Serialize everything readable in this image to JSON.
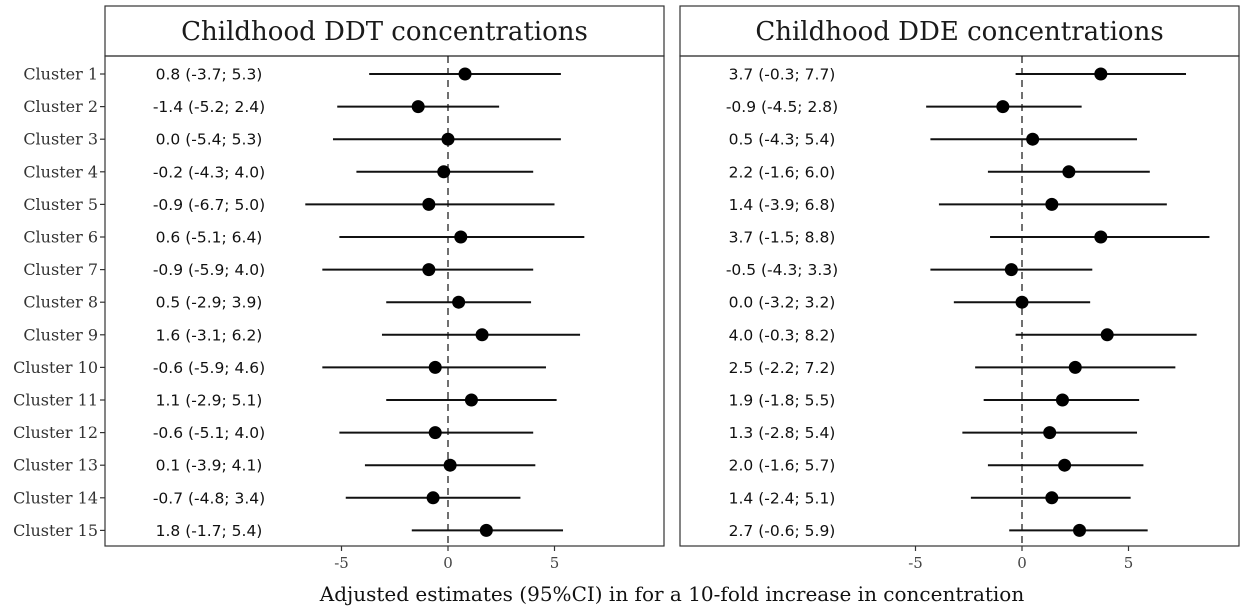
{
  "chart_data": {
    "type": "scatter",
    "xlabel": "Adjusted estimates (95%CI) in for a 10-fold increase in concentration",
    "clusters": [
      "Cluster 1",
      "Cluster 2",
      "Cluster 3",
      "Cluster 4",
      "Cluster 5",
      "Cluster 6",
      "Cluster 7",
      "Cluster 8",
      "Cluster 9",
      "Cluster 10",
      "Cluster 11",
      "Cluster 12",
      "Cluster 13",
      "Cluster 14",
      "Cluster 15"
    ],
    "xlim": [
      -10,
      10
    ],
    "xticks": [
      -5,
      0,
      5
    ],
    "reference_line": 0,
    "grid": false,
    "panels": [
      {
        "title": "Childhood DDT concentrations",
        "estimates": [
          0.8,
          -1.4,
          0.0,
          -0.2,
          -0.9,
          0.6,
          -0.9,
          0.5,
          1.6,
          -0.6,
          1.1,
          -0.6,
          0.1,
          -0.7,
          1.8
        ],
        "lower": [
          -3.7,
          -5.2,
          -5.4,
          -4.3,
          -6.7,
          -5.1,
          -5.9,
          -2.9,
          -3.1,
          -5.9,
          -2.9,
          -5.1,
          -3.9,
          -4.8,
          -1.7
        ],
        "upper": [
          5.3,
          2.4,
          5.3,
          4.0,
          5.0,
          6.4,
          4.0,
          3.9,
          6.2,
          4.6,
          5.1,
          4.0,
          4.1,
          3.4,
          5.4
        ],
        "labels": [
          "0.8 (-3.7; 5.3)",
          "-1.4 (-5.2; 2.4)",
          "0.0 (-5.4; 5.3)",
          "-0.2 (-4.3; 4.0)",
          "-0.9 (-6.7; 5.0)",
          "0.6 (-5.1; 6.4)",
          "-0.9 (-5.9; 4.0)",
          "0.5 (-2.9; 3.9)",
          "1.6 (-3.1; 6.2)",
          "-0.6 (-5.9; 4.6)",
          "1.1 (-2.9; 5.1)",
          "-0.6 (-5.1; 4.0)",
          "0.1 (-3.9; 4.1)",
          "-0.7 (-4.8; 3.4)",
          "1.8 (-1.7; 5.4)"
        ]
      },
      {
        "title": "Childhood DDE concentrations",
        "estimates": [
          3.7,
          -0.9,
          0.5,
          2.2,
          1.4,
          3.7,
          -0.5,
          0.0,
          4.0,
          2.5,
          1.9,
          1.3,
          2.0,
          1.4,
          2.7
        ],
        "lower": [
          -0.3,
          -4.5,
          -4.3,
          -1.6,
          -3.9,
          -1.5,
          -4.3,
          -3.2,
          -0.3,
          -2.2,
          -1.8,
          -2.8,
          -1.6,
          -2.4,
          -0.6
        ],
        "upper": [
          7.7,
          2.8,
          5.4,
          6.0,
          6.8,
          8.8,
          3.3,
          3.2,
          8.2,
          7.2,
          5.5,
          5.4,
          5.7,
          5.1,
          5.9
        ],
        "labels": [
          "3.7 (-0.3; 7.7)",
          "-0.9 (-4.5; 2.8)",
          "0.5 (-4.3; 5.4)",
          "2.2 (-1.6; 6.0)",
          "1.4 (-3.9; 6.8)",
          "3.7 (-1.5; 8.8)",
          "-0.5 (-4.3; 3.3)",
          "0.0 (-3.2; 3.2)",
          "4.0 (-0.3; 8.2)",
          "2.5 (-2.2; 7.2)",
          "1.9 (-1.8; 5.5)",
          "1.3 (-2.8; 5.4)",
          "2.0 (-1.6; 5.7)",
          "1.4 (-2.4; 5.1)",
          "2.7 (-0.6; 5.9)"
        ]
      }
    ]
  }
}
